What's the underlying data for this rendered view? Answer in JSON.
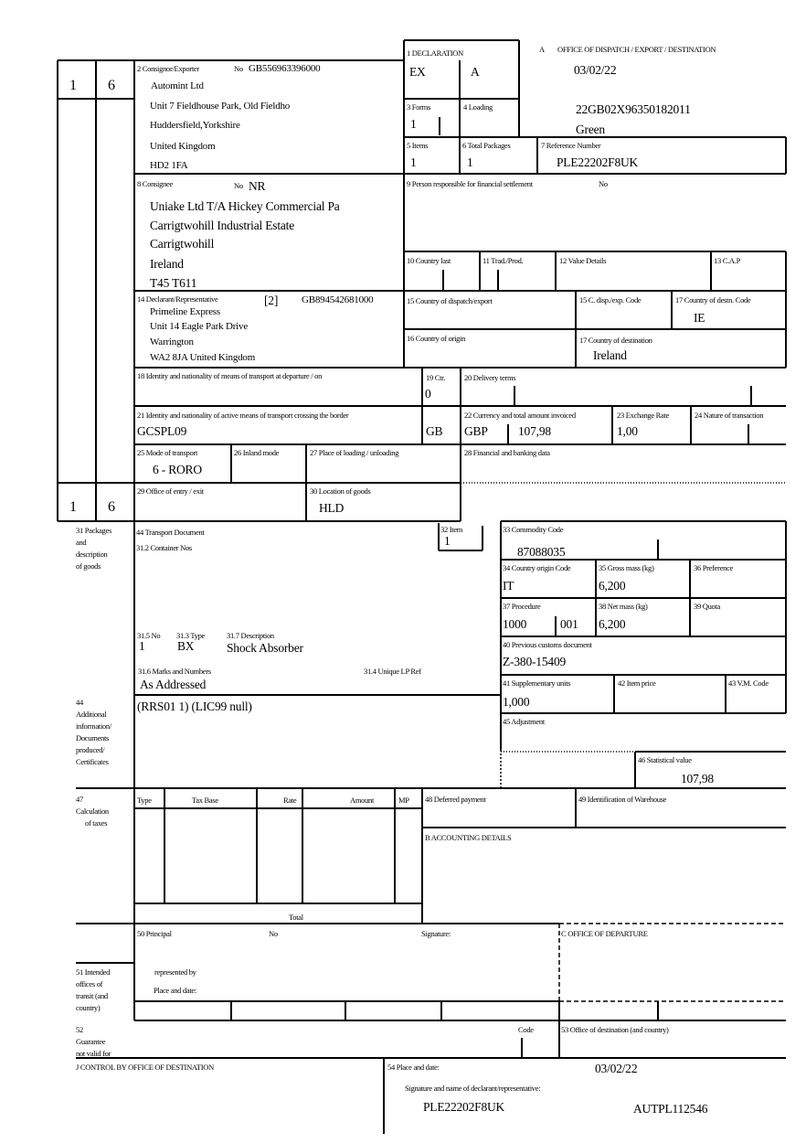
{
  "copies_top": [
    "1",
    "6"
  ],
  "copies_bottom": [
    "1",
    "6"
  ],
  "box_a": {
    "label": "A",
    "title": "OFFICE OF DISPATCH / EXPORT / DESTINATION",
    "date": "03/02/22",
    "mrn": "22GB02X96350182011",
    "route": "Green"
  },
  "declaration": {
    "label": "1 DECLARATION",
    "type1": "EX",
    "type2": "A"
  },
  "forms": {
    "label": "3 Forms",
    "value": "1"
  },
  "loading": {
    "label": "4 Loading"
  },
  "items": {
    "label": "5 Items",
    "value": "1"
  },
  "total_packages": {
    "label": "6 Total Packages",
    "value": "1"
  },
  "reference": {
    "label": "7 Reference Number",
    "value": "PLE22202F8UK"
  },
  "consignor": {
    "label": "2 Consignor/Exporter",
    "no_label": "No",
    "no": "GB556963396000",
    "lines": [
      "Automint Ltd",
      "Unit 7 Fieldhouse Park, Old Fieldho",
      "Huddersfield,Yorkshire",
      "United Kingdom",
      "HD2 1FA"
    ]
  },
  "consignee": {
    "label": "8 Consignee",
    "no_label": "No",
    "no": "NR",
    "lines": [
      "Uniake Ltd T/A Hickey Commercial Pa",
      "Carrigtwohill Industrial Estate",
      "Carrigtwohill",
      "Ireland",
      "T45 T611"
    ]
  },
  "box9": {
    "label": "9 Person responsible for financial settlement",
    "no_label": "No"
  },
  "box10": {
    "label": "10 Country last"
  },
  "box11": {
    "label": "11 Trad./Prod."
  },
  "box12": {
    "label": "12 Value Details"
  },
  "box13": {
    "label": "13 C.A.P"
  },
  "declarant": {
    "label": "14 Declarant/Representative",
    "code": "[2]",
    "no": "GB894542681000",
    "lines": [
      "Primeline Express",
      "Unit 14 Eagle Park Drive",
      "Warrington",
      "WA2 8JA United Kingdom"
    ]
  },
  "box15": {
    "label": "15 Country of dispatch/export"
  },
  "box15c": {
    "label": "15 C. disp./exp. Code"
  },
  "box17c": {
    "label": "17 Country of destn. Code",
    "value": "IE"
  },
  "box16": {
    "label": "16 Country of origin"
  },
  "box17": {
    "label": "17 Country of destination",
    "value": "Ireland"
  },
  "box18": {
    "label": "18 Identity and nationality of means of transport at departure / on"
  },
  "box19": {
    "label": "19 Ctr.",
    "value": "0"
  },
  "box20": {
    "label": "20 Delivery terms"
  },
  "box21": {
    "label": "21 Identity and nationality of active means of transport crossing the border",
    "value": "GCSPL09",
    "nationality": "GB"
  },
  "box22": {
    "label": "22 Currency and total amount invoiced",
    "currency": "GBP",
    "amount": "107,98"
  },
  "box23": {
    "label": "23 Exchange Rate",
    "value": "1,00"
  },
  "box24": {
    "label": "24 Nature of transaction"
  },
  "box25": {
    "label": "25 Mode of transport",
    "value": "6 - RORO"
  },
  "box26": {
    "label": "26 Inland mode"
  },
  "box27": {
    "label": "27 Place of loading / unloading"
  },
  "box28": {
    "label": "28 Financial and banking data"
  },
  "box29": {
    "label": "29 Office of entry / exit"
  },
  "box30": {
    "label": "30 Location of goods",
    "value": "HLD"
  },
  "box31": {
    "label_lines": [
      "31 Packages",
      "and",
      "description",
      "of goods"
    ],
    "transport_doc": "44 Transport Document",
    "container": "31.2 Container Nos",
    "no_label": "31.5 No",
    "no": "1",
    "type_label": "31.3 Type",
    "type": "BX",
    "desc_label": "31.7 Description",
    "desc": "Shock Absorber",
    "marks_label": "31.6 Marks and Numbers",
    "marks": "As Addressed",
    "lp_label": "31.4 Unique LP Ref"
  },
  "box32": {
    "label": "32 Item",
    "value": "1"
  },
  "box33": {
    "label": "33 Commodity Code",
    "value": "87088035"
  },
  "box34": {
    "label": "34 Country origin Code",
    "value": "IT"
  },
  "box35": {
    "label": "35 Gross mass (kg)",
    "value": "6,200"
  },
  "box36": {
    "label": "36 Preference"
  },
  "box37": {
    "label": "37 Procedure",
    "value1": "1000",
    "value2": "001"
  },
  "box38": {
    "label": "38 Net mass (kg)",
    "value": "6,200"
  },
  "box39": {
    "label": "39 Quota"
  },
  "box40": {
    "label": "40 Previous customs document",
    "value": "Z-380-15409"
  },
  "box41": {
    "label": "41 Supplementary units",
    "value": "1,000"
  },
  "box42": {
    "label": "42 Item price"
  },
  "box43": {
    "label": "43 V.M. Code"
  },
  "box44": {
    "label_lines": [
      "44",
      "Additional",
      "information/",
      "Documents",
      "produced/",
      "Certificates"
    ],
    "value": "(RRS01 1) (LIC99 null)"
  },
  "box45": {
    "label": "45 Adjustment"
  },
  "box46": {
    "label": "46 Statistical value",
    "value": "107,98"
  },
  "box47": {
    "label_lines": [
      "47",
      "Calculation",
      "of taxes"
    ],
    "headers": [
      "Type",
      "Tax Base",
      "Rate",
      "Amount",
      "MP"
    ],
    "total": "Total"
  },
  "box48": {
    "label": "48 Deferred payment"
  },
  "box49": {
    "label": "49 Identification of Warehouse"
  },
  "box_b": {
    "label": "B ACCOUNTING DETAILS"
  },
  "box50": {
    "label": "50 Principal",
    "no_label": "No",
    "signature": "Signature:",
    "represented": "represented by",
    "place": "Place and date:"
  },
  "box_c": {
    "label": "C OFFICE OF DEPARTURE"
  },
  "box51": {
    "label_lines": [
      "51 Intended",
      "offices of",
      "transit (and",
      "country)"
    ]
  },
  "box52": {
    "label_lines": [
      "52",
      "Guarantee",
      "not valid for"
    ],
    "code": "Code"
  },
  "box53": {
    "label": "53 Office of destination (and country)"
  },
  "box_j": {
    "label": "J CONTROL BY OFFICE OF DESTINATION"
  },
  "box54": {
    "label": "54 Place and date:",
    "date": "03/02/22",
    "sig_label": "Signature and name of declarant/representative:",
    "ref": "PLE22202F8UK",
    "name": "AUTPL112546"
  }
}
